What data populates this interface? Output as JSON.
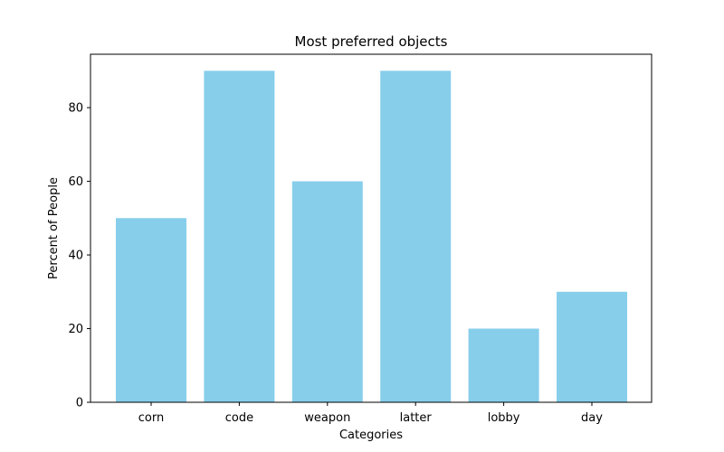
{
  "chart_data": {
    "type": "bar",
    "title": "Most preferred objects",
    "xlabel": "Categories",
    "ylabel": "Percent of People",
    "categories": [
      "corn",
      "code",
      "weapon",
      "latter",
      "lobby",
      "day"
    ],
    "values": [
      50,
      90,
      60,
      90,
      20,
      30
    ],
    "ylim": [
      0,
      94.5
    ],
    "yticks": [
      0,
      20,
      40,
      60,
      80
    ],
    "bar_color": "#87CEEB",
    "grid": false,
    "legend": "none"
  }
}
